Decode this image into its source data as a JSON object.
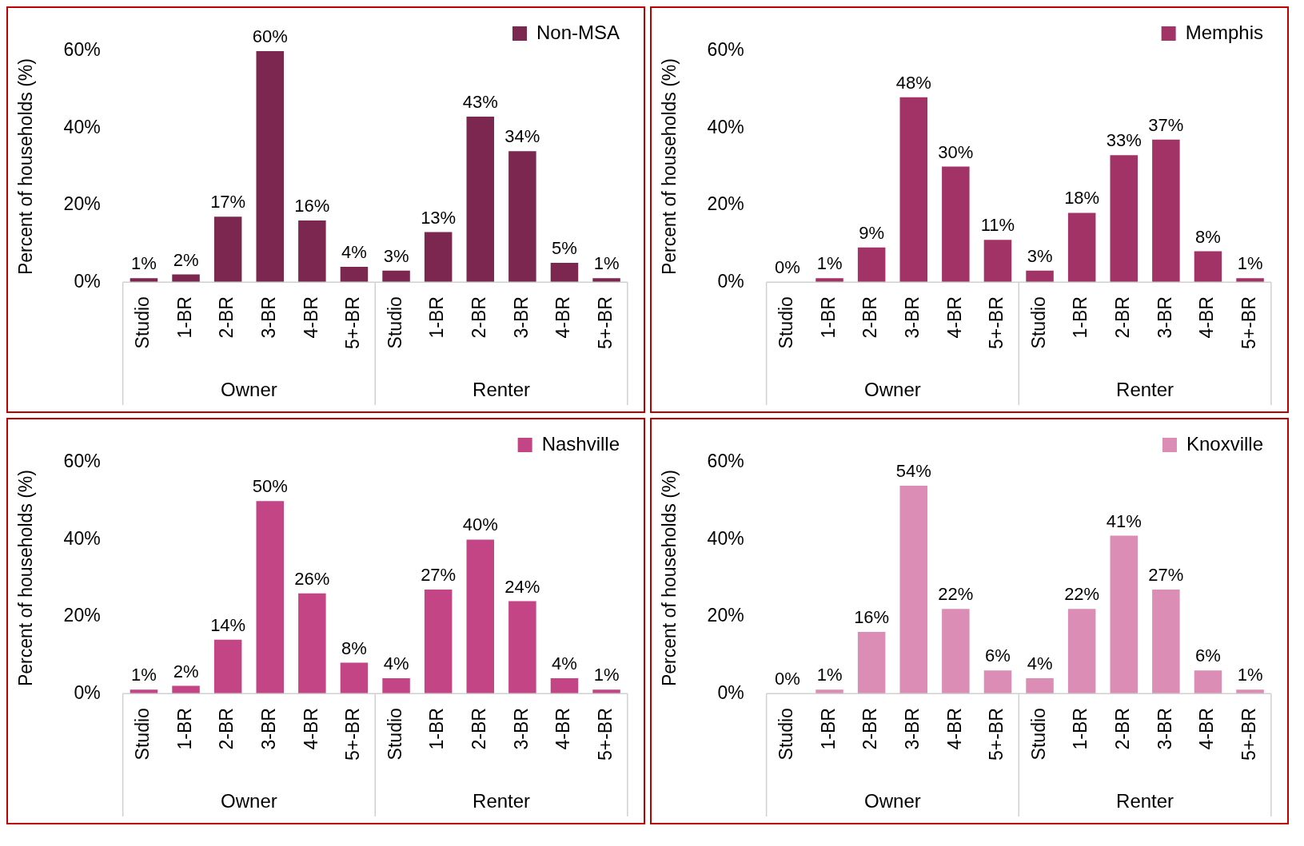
{
  "chart_data": [
    {
      "type": "bar",
      "ylabel": "Percent of households (%)",
      "categories": [
        "Studio",
        "1-BR",
        "2-BR",
        "3-BR",
        "4-BR",
        "5+-BR",
        "Studio",
        "1-BR",
        "2-BR",
        "3-BR",
        "4-BR",
        "5+-BR"
      ],
      "series": [
        {
          "name": "Non-MSA",
          "color": "#7b2750",
          "values": [
            1,
            2,
            17,
            60,
            16,
            4,
            3,
            13,
            43,
            34,
            5,
            1
          ],
          "value_labels": [
            "1%",
            "2%",
            "17%",
            "60%",
            "16%",
            "4%",
            "3%",
            "13%",
            "43%",
            "34%",
            "5%",
            "1%"
          ]
        }
      ],
      "ylim": [
        0,
        60
      ],
      "yticks": [
        {
          "value": 0,
          "label": "0%"
        },
        {
          "value": 20,
          "label": "20%"
        },
        {
          "value": 40,
          "label": "40%"
        },
        {
          "value": 60,
          "label": "60%"
        }
      ],
      "grid": false,
      "legend": "top right",
      "annotations": [
        "Owner",
        "Renter"
      ]
    },
    {
      "type": "bar",
      "ylabel": "Percent of households (%)",
      "categories": [
        "Studio",
        "1-BR",
        "2-BR",
        "3-BR",
        "4-BR",
        "5+-BR",
        "Studio",
        "1-BR",
        "2-BR",
        "3-BR",
        "4-BR",
        "5+-BR"
      ],
      "series": [
        {
          "name": "Memphis",
          "color": "#a23366",
          "values": [
            0,
            1,
            9,
            48,
            30,
            11,
            3,
            18,
            33,
            37,
            8,
            1
          ],
          "value_labels": [
            "0%",
            "1%",
            "9%",
            "48%",
            "30%",
            "11%",
            "3%",
            "18%",
            "33%",
            "37%",
            "8%",
            "1%"
          ]
        }
      ],
      "ylim": [
        0,
        60
      ],
      "yticks": [
        {
          "value": 0,
          "label": "0%"
        },
        {
          "value": 20,
          "label": "20%"
        },
        {
          "value": 40,
          "label": "40%"
        },
        {
          "value": 60,
          "label": "60%"
        }
      ],
      "grid": false,
      "legend": "top right",
      "annotations": [
        "Owner",
        "Renter"
      ]
    },
    {
      "type": "bar",
      "ylabel": "Percent of households (%)",
      "categories": [
        "Studio",
        "1-BR",
        "2-BR",
        "3-BR",
        "4-BR",
        "5+-BR",
        "Studio",
        "1-BR",
        "2-BR",
        "3-BR",
        "4-BR",
        "5+-BR"
      ],
      "series": [
        {
          "name": "Nashville",
          "color": "#c44586",
          "values": [
            1,
            2,
            14,
            50,
            26,
            8,
            4,
            27,
            40,
            24,
            4,
            1
          ],
          "value_labels": [
            "1%",
            "2%",
            "14%",
            "50%",
            "26%",
            "8%",
            "4%",
            "27%",
            "40%",
            "24%",
            "4%",
            "1%"
          ]
        }
      ],
      "ylim": [
        0,
        60
      ],
      "yticks": [
        {
          "value": 0,
          "label": "0%"
        },
        {
          "value": 20,
          "label": "20%"
        },
        {
          "value": 40,
          "label": "40%"
        },
        {
          "value": 60,
          "label": "60%"
        }
      ],
      "grid": false,
      "legend": "top right",
      "annotations": [
        "Owner",
        "Renter"
      ]
    },
    {
      "type": "bar",
      "ylabel": "Percent of households (%)",
      "categories": [
        "Studio",
        "1-BR",
        "2-BR",
        "3-BR",
        "4-BR",
        "5+-BR",
        "Studio",
        "1-BR",
        "2-BR",
        "3-BR",
        "4-BR",
        "5+-BR"
      ],
      "series": [
        {
          "name": "Knoxville",
          "color": "#db8db5",
          "values": [
            0,
            1,
            16,
            54,
            22,
            6,
            4,
            22,
            41,
            27,
            6,
            1
          ],
          "value_labels": [
            "0%",
            "1%",
            "16%",
            "54%",
            "22%",
            "6%",
            "4%",
            "22%",
            "41%",
            "27%",
            "6%",
            "1%"
          ]
        }
      ],
      "ylim": [
        0,
        60
      ],
      "yticks": [
        {
          "value": 0,
          "label": "0%"
        },
        {
          "value": 20,
          "label": "20%"
        },
        {
          "value": 40,
          "label": "40%"
        },
        {
          "value": 60,
          "label": "60%"
        }
      ],
      "grid": false,
      "legend": "top right",
      "annotations": [
        "Owner",
        "Renter"
      ]
    }
  ]
}
